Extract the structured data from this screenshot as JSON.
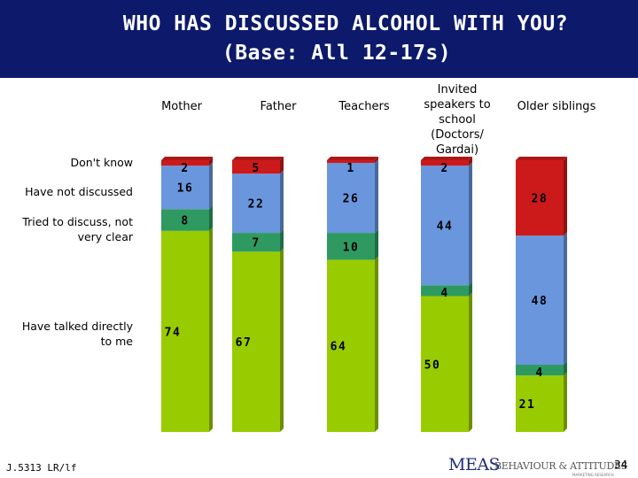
{
  "slide": {
    "title_line1": "WHO HAS DISCUSSED ALCOHOL WITH YOU?",
    "title_line2": "(Base: All 12-17s)",
    "footer_ref": "J.5313 LR/lf",
    "logo_primary": "MEAS",
    "logo_secondary": "BEHAVIOUR & ATTITUDES",
    "logo_secondary_sub": "MARKETING RESEARCH",
    "page_number": "34"
  },
  "colors": {
    "header_bg": "#0d1a6b",
    "dont_know": "#cc1a1a",
    "not_discussed": "#6a96de",
    "tried": "#2e9a62",
    "talked_directly": "#99cc00"
  },
  "row_labels": {
    "dont_know": "Don't know",
    "not_discussed": "Have not discussed",
    "tried": "Tried to discuss, not very clear",
    "talked": "Have talked directly to me"
  },
  "chart_data": {
    "type": "bar",
    "stacked": true,
    "orientation": "vertical",
    "categories": [
      "Mother",
      "Father",
      "Teachers",
      "Invited speakers to school (Doctors/ Gardai)",
      "Older siblings"
    ],
    "series": [
      {
        "name": "Have talked directly to me",
        "values": [
          74,
          67,
          64,
          50,
          21
        ]
      },
      {
        "name": "Tried to discuss, not very clear",
        "values": [
          8,
          7,
          10,
          4,
          4
        ]
      },
      {
        "name": "Have not discussed",
        "values": [
          16,
          22,
          26,
          44,
          48
        ]
      },
      {
        "name": "Don't know",
        "values": [
          2,
          5,
          1,
          2,
          28
        ]
      }
    ],
    "ylim": [
      0,
      100
    ],
    "grid": false,
    "legend": "left row labels"
  }
}
